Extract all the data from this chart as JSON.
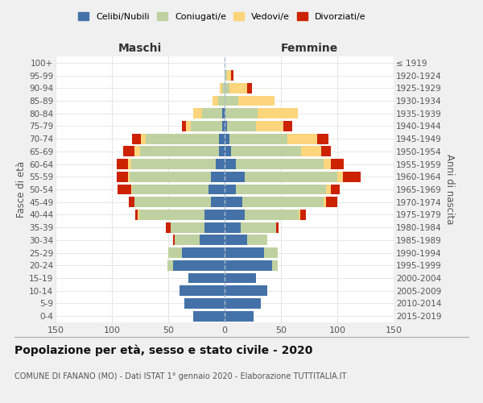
{
  "age_groups": [
    "0-4",
    "5-9",
    "10-14",
    "15-19",
    "20-24",
    "25-29",
    "30-34",
    "35-39",
    "40-44",
    "45-49",
    "50-54",
    "55-59",
    "60-64",
    "65-69",
    "70-74",
    "75-79",
    "80-84",
    "85-89",
    "90-94",
    "95-99",
    "100+"
  ],
  "birth_years": [
    "2015-2019",
    "2010-2014",
    "2005-2009",
    "2000-2004",
    "1995-1999",
    "1990-1994",
    "1985-1989",
    "1980-1984",
    "1975-1979",
    "1970-1974",
    "1965-1969",
    "1960-1964",
    "1955-1959",
    "1950-1954",
    "1945-1949",
    "1940-1944",
    "1935-1939",
    "1930-1934",
    "1925-1929",
    "1920-1924",
    "≤ 1919"
  ],
  "males": {
    "celibi": [
      28,
      36,
      40,
      32,
      46,
      38,
      22,
      18,
      18,
      12,
      14,
      12,
      8,
      5,
      5,
      2,
      2,
      0,
      0,
      0,
      0
    ],
    "coniugati": [
      0,
      0,
      0,
      0,
      5,
      12,
      22,
      30,
      58,
      68,
      68,
      72,
      75,
      70,
      65,
      28,
      18,
      6,
      2,
      0,
      0
    ],
    "vedovi": [
      0,
      0,
      0,
      0,
      0,
      0,
      0,
      0,
      1,
      0,
      1,
      2,
      3,
      5,
      4,
      4,
      8,
      5,
      2,
      0,
      0
    ],
    "divorziati": [
      0,
      0,
      0,
      0,
      0,
      0,
      2,
      4,
      2,
      5,
      12,
      10,
      10,
      10,
      8,
      4,
      0,
      0,
      0,
      0,
      0
    ]
  },
  "females": {
    "nubili": [
      26,
      32,
      38,
      28,
      42,
      35,
      20,
      14,
      18,
      16,
      10,
      18,
      10,
      6,
      4,
      2,
      1,
      0,
      0,
      0,
      0
    ],
    "coniugate": [
      0,
      0,
      0,
      0,
      5,
      12,
      18,
      32,
      48,
      72,
      80,
      82,
      78,
      62,
      52,
      26,
      28,
      12,
      4,
      2,
      0
    ],
    "vedove": [
      0,
      0,
      0,
      0,
      0,
      0,
      0,
      0,
      1,
      2,
      4,
      5,
      6,
      18,
      26,
      24,
      36,
      32,
      16,
      4,
      0
    ],
    "divorziate": [
      0,
      0,
      0,
      0,
      0,
      0,
      0,
      2,
      5,
      10,
      8,
      16,
      12,
      8,
      10,
      8,
      0,
      0,
      4,
      2,
      0
    ]
  },
  "colors": {
    "celibi": "#4472a8",
    "coniugati": "#bfd1a0",
    "vedovi": "#fcd57c",
    "divorziati": "#cc2200"
  },
  "xlim": 150,
  "title": "Popolazione per età, sesso e stato civile - 2020",
  "subtitle": "COMUNE DI FANANO (MO) - Dati ISTAT 1° gennaio 2020 - Elaborazione TUTTITALIA.IT",
  "ylabel": "Fasce di età",
  "ylabel_right": "Anni di nascita",
  "xlabel_left": "Maschi",
  "xlabel_right": "Femmine",
  "background_color": "#f0f0f0",
  "plot_background": "#ffffff"
}
